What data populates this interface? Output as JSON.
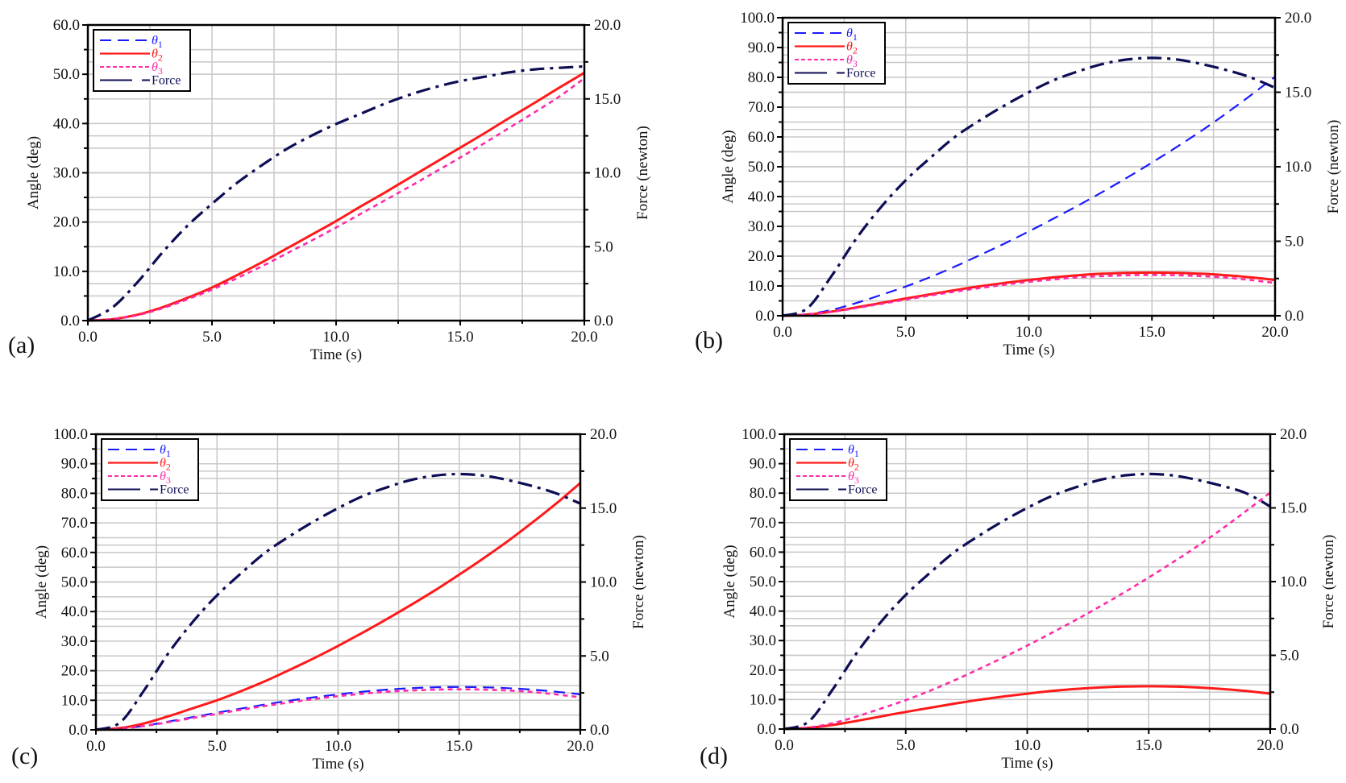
{
  "figure": {
    "colors": {
      "theta1": "#1a1aff",
      "theta2": "#ff1a1a",
      "theta3": "#ff2aa8",
      "force": "#0d0d55",
      "grid": "#c8c8c8",
      "axis": "#000000"
    }
  },
  "chart_data": [
    {
      "type": "line",
      "panel_label": "(a)",
      "xlabel": "Time (s)",
      "ylabel": "Angle (deg)",
      "y2label": "Force (newton)",
      "xlim": [
        0,
        20
      ],
      "ylim": [
        0,
        60
      ],
      "y2lim": [
        0,
        20
      ],
      "xticks": [
        "0.0",
        "5.0",
        "10.0",
        "15.0",
        "20.0"
      ],
      "yticks": [
        "0.0",
        "10.0",
        "20.0",
        "30.0",
        "40.0",
        "50.0",
        "60.0"
      ],
      "y2ticks": [
        "0.0",
        "5.0",
        "10.0",
        "15.0",
        "20.0"
      ],
      "grid": true,
      "legend_position": "top-left",
      "legend": [
        {
          "key": "theta1",
          "label": "θ",
          "sub": "1",
          "style": "dashed"
        },
        {
          "key": "theta2",
          "label": "θ",
          "sub": "2",
          "style": "solid"
        },
        {
          "key": "theta3",
          "label": "θ",
          "sub": "3",
          "style": "dotted"
        },
        {
          "key": "force",
          "label": "Force",
          "sub": "",
          "style": "dash-dot"
        }
      ],
      "x": [
        0,
        1,
        2,
        3,
        4,
        5,
        6,
        7,
        8,
        9,
        10,
        11,
        12,
        13,
        14,
        15,
        16,
        17,
        18,
        19,
        20
      ],
      "series": [
        {
          "name": "θ1",
          "key": "theta1",
          "axis": "left",
          "values": [
            0,
            0.3,
            1.2,
            2.7,
            4.6,
            6.7,
            9.2,
            11.8,
            14.6,
            17.4,
            20.2,
            23.2,
            26.1,
            29.1,
            32.1,
            35.1,
            38.1,
            41.2,
            44.2,
            47.3,
            50.3
          ]
        },
        {
          "name": "θ2",
          "key": "theta2",
          "axis": "left",
          "values": [
            0,
            0.3,
            1.2,
            2.7,
            4.6,
            6.7,
            9.2,
            11.8,
            14.6,
            17.4,
            20.2,
            23.2,
            26.1,
            29.1,
            32.1,
            35.1,
            38.1,
            41.2,
            44.2,
            47.3,
            50.3
          ]
        },
        {
          "name": "θ3",
          "key": "theta3",
          "axis": "left",
          "values": [
            0,
            0.3,
            1.1,
            2.5,
            4.3,
            6.3,
            8.6,
            11.0,
            13.6,
            16.2,
            18.9,
            21.7,
            24.5,
            27.3,
            30.2,
            33.1,
            36.1,
            39.2,
            42.3,
            45.5,
            49.2
          ]
        },
        {
          "name": "Force",
          "key": "force",
          "axis": "right",
          "values": [
            0,
            0.9,
            2.6,
            4.6,
            6.4,
            7.9,
            9.3,
            10.5,
            11.6,
            12.5,
            13.3,
            14.0,
            14.7,
            15.3,
            15.8,
            16.2,
            16.5,
            16.8,
            17.0,
            17.1,
            17.2
          ]
        }
      ]
    },
    {
      "type": "line",
      "panel_label": "(b)",
      "xlabel": "Time (s)",
      "ylabel": "Angle (deg)",
      "y2label": "Force (newton)",
      "xlim": [
        0,
        20
      ],
      "ylim": [
        0,
        100
      ],
      "y2lim": [
        0,
        20
      ],
      "xticks": [
        "0.0",
        "5.0",
        "10.0",
        "15.0",
        "20.0"
      ],
      "yticks": [
        "0.0",
        "10.0",
        "20.0",
        "30.0",
        "40.0",
        "50.0",
        "60.0",
        "70.0",
        "80.0",
        "90.0",
        "100.0"
      ],
      "y2ticks": [
        "0.0",
        "5.0",
        "10.0",
        "15.0",
        "20.0"
      ],
      "grid": true,
      "legend_position": "top-left",
      "legend": [
        {
          "key": "theta1",
          "label": "θ",
          "sub": "1",
          "style": "dashed"
        },
        {
          "key": "theta2",
          "label": "θ",
          "sub": "2",
          "style": "solid"
        },
        {
          "key": "theta3",
          "label": "θ",
          "sub": "3",
          "style": "dotted"
        },
        {
          "key": "force",
          "label": "Force",
          "sub": "",
          "style": "dash-dot"
        }
      ],
      "x": [
        0,
        1,
        2,
        3,
        4,
        5,
        6,
        7,
        8,
        9,
        10,
        11,
        12,
        13,
        14,
        15,
        16,
        17,
        18,
        19,
        20
      ],
      "series": [
        {
          "name": "θ1",
          "key": "theta1",
          "axis": "left",
          "values": [
            0,
            0.5,
            2.0,
            4.3,
            7.0,
            9.8,
            13.0,
            16.5,
            20.3,
            24.2,
            28.3,
            32.6,
            37.0,
            41.6,
            46.4,
            51.4,
            56.6,
            62.0,
            67.8,
            73.9,
            80.2
          ]
        },
        {
          "name": "θ2",
          "key": "theta2",
          "axis": "left",
          "values": [
            0,
            0.4,
            1.4,
            2.8,
            4.3,
            5.8,
            7.2,
            8.6,
            9.9,
            11.0,
            12.0,
            12.9,
            13.6,
            14.1,
            14.4,
            14.5,
            14.4,
            14.1,
            13.6,
            12.9,
            12.0
          ]
        },
        {
          "name": "θ3",
          "key": "theta3",
          "axis": "left",
          "values": [
            0,
            0.4,
            1.3,
            2.6,
            4.0,
            5.4,
            6.8,
            8.1,
            9.3,
            10.4,
            11.4,
            12.2,
            12.9,
            13.3,
            13.6,
            13.7,
            13.6,
            13.3,
            12.8,
            12.0,
            11.0
          ]
        },
        {
          "name": "Force",
          "key": "force",
          "axis": "right",
          "values": [
            0,
            0.5,
            2.7,
            5.2,
            7.3,
            9.1,
            10.6,
            12.0,
            13.1,
            14.1,
            15.0,
            15.8,
            16.4,
            16.9,
            17.2,
            17.3,
            17.2,
            16.9,
            16.5,
            16.0,
            15.3
          ]
        }
      ]
    },
    {
      "type": "line",
      "panel_label": "(c)",
      "xlabel": "Time (s)",
      "ylabel": "Angle (deg)",
      "y2label": "Force (newton)",
      "xlim": [
        0,
        20
      ],
      "ylim": [
        0,
        100
      ],
      "y2lim": [
        0,
        20
      ],
      "xticks": [
        "0.0",
        "5.0",
        "10.0",
        "15.0",
        "20.0"
      ],
      "yticks": [
        "0.0",
        "10.0",
        "20.0",
        "30.0",
        "40.0",
        "50.0",
        "60.0",
        "70.0",
        "80.0",
        "90.0",
        "100.0"
      ],
      "y2ticks": [
        "0.0",
        "5.0",
        "10.0",
        "15.0",
        "20.0"
      ],
      "grid": true,
      "legend_position": "top-left",
      "legend": [
        {
          "key": "theta1",
          "label": "θ",
          "sub": "1",
          "style": "dashed"
        },
        {
          "key": "theta2",
          "label": "θ",
          "sub": "2",
          "style": "solid"
        },
        {
          "key": "theta3",
          "label": "θ",
          "sub": "3",
          "style": "dotted"
        },
        {
          "key": "force",
          "label": "Force",
          "sub": "",
          "style": "dash-dot"
        }
      ],
      "x": [
        0,
        1,
        2,
        3,
        4,
        5,
        6,
        7,
        8,
        9,
        10,
        11,
        12,
        13,
        14,
        15,
        16,
        17,
        18,
        19,
        20
      ],
      "series": [
        {
          "name": "θ1",
          "key": "theta1",
          "axis": "left",
          "values": [
            0,
            0.4,
            1.4,
            2.8,
            4.3,
            5.8,
            7.2,
            8.6,
            9.9,
            11.0,
            12.0,
            12.9,
            13.6,
            14.1,
            14.4,
            14.5,
            14.4,
            14.1,
            13.6,
            12.9,
            12.0
          ]
        },
        {
          "name": "θ2",
          "key": "theta2",
          "axis": "left",
          "values": [
            0,
            0.6,
            2.2,
            4.6,
            7.3,
            10.0,
            13.1,
            16.5,
            20.3,
            24.2,
            28.4,
            32.8,
            37.4,
            42.2,
            47.2,
            52.5,
            58.0,
            63.8,
            70.0,
            76.5,
            83.5
          ]
        },
        {
          "name": "θ3",
          "key": "theta3",
          "axis": "left",
          "values": [
            0,
            0.4,
            1.3,
            2.6,
            4.0,
            5.4,
            6.8,
            8.1,
            9.3,
            10.4,
            11.4,
            12.2,
            12.9,
            13.3,
            13.6,
            13.7,
            13.6,
            13.3,
            12.8,
            12.0,
            11.0
          ]
        },
        {
          "name": "Force",
          "key": "force",
          "axis": "right",
          "values": [
            0,
            0.5,
            2.7,
            5.2,
            7.3,
            9.1,
            10.6,
            12.0,
            13.1,
            14.1,
            15.0,
            15.8,
            16.4,
            16.9,
            17.2,
            17.3,
            17.2,
            16.9,
            16.5,
            16.0,
            15.3
          ]
        }
      ]
    },
    {
      "type": "line",
      "panel_label": "(d)",
      "xlabel": "Time (s)",
      "ylabel": "Angle (deg)",
      "y2label": "Force (newton)",
      "xlim": [
        0,
        20
      ],
      "ylim": [
        0,
        100
      ],
      "y2lim": [
        0,
        20
      ],
      "xticks": [
        "0.0",
        "5.0",
        "10.0",
        "15.0",
        "20.0"
      ],
      "yticks": [
        "0.0",
        "10.0",
        "20.0",
        "30.0",
        "40.0",
        "50.0",
        "60.0",
        "70.0",
        "80.0",
        "90.0",
        "100.0"
      ],
      "y2ticks": [
        "0.0",
        "5.0",
        "10.0",
        "15.0",
        "20.0"
      ],
      "grid": true,
      "legend_position": "top-left",
      "legend": [
        {
          "key": "theta1",
          "label": "θ",
          "sub": "1",
          "style": "dashed"
        },
        {
          "key": "theta2",
          "label": "θ",
          "sub": "2",
          "style": "solid"
        },
        {
          "key": "theta3",
          "label": "θ",
          "sub": "3",
          "style": "dotted"
        },
        {
          "key": "force",
          "label": "Force",
          "sub": "",
          "style": "dash-dot"
        }
      ],
      "x": [
        0,
        1,
        2,
        3,
        4,
        5,
        6,
        7,
        8,
        9,
        10,
        11,
        12,
        13,
        14,
        15,
        16,
        17,
        18,
        19,
        20
      ],
      "series": [
        {
          "name": "θ1",
          "key": "theta1",
          "axis": "left",
          "values": [
            0,
            0.4,
            1.4,
            2.8,
            4.3,
            5.8,
            7.2,
            8.6,
            9.9,
            11.0,
            12.0,
            12.9,
            13.6,
            14.1,
            14.4,
            14.5,
            14.4,
            14.1,
            13.6,
            12.9,
            12.0
          ]
        },
        {
          "name": "θ2",
          "key": "theta2",
          "axis": "left",
          "values": [
            0,
            0.4,
            1.4,
            2.8,
            4.3,
            5.8,
            7.2,
            8.6,
            9.9,
            11.0,
            12.0,
            12.9,
            13.6,
            14.1,
            14.4,
            14.5,
            14.4,
            14.1,
            13.6,
            12.9,
            12.0
          ]
        },
        {
          "name": "θ3",
          "key": "theta3",
          "axis": "left",
          "values": [
            0,
            0.5,
            2.0,
            4.3,
            7.0,
            9.8,
            13.0,
            16.5,
            20.3,
            24.2,
            28.3,
            32.6,
            37.0,
            41.6,
            46.4,
            51.4,
            56.6,
            62.0,
            67.8,
            73.9,
            80.2
          ]
        },
        {
          "name": "Force",
          "key": "force",
          "axis": "right",
          "values": [
            0,
            0.5,
            2.7,
            5.2,
            7.3,
            9.1,
            10.6,
            12.0,
            13.1,
            14.1,
            15.0,
            15.8,
            16.4,
            16.9,
            17.2,
            17.3,
            17.2,
            16.9,
            16.5,
            16.0,
            15.1
          ]
        }
      ]
    }
  ]
}
